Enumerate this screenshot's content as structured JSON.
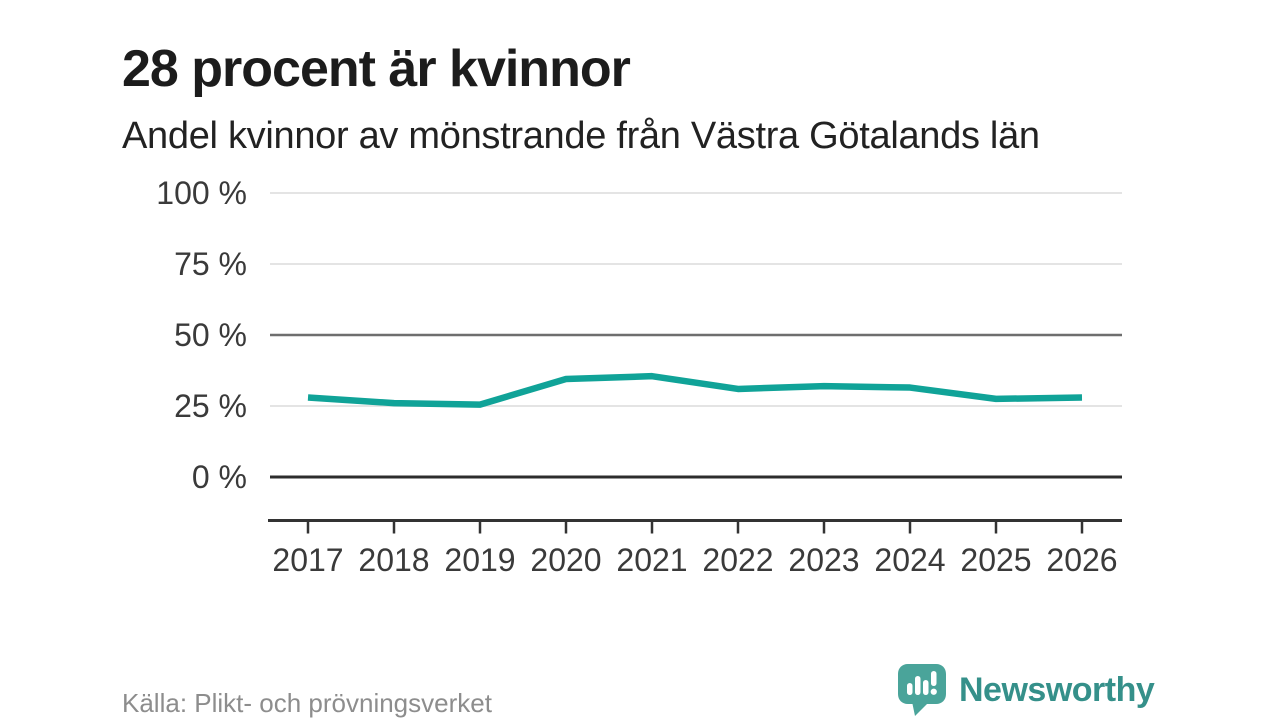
{
  "header": {
    "title": "28 procent är kvinnor",
    "subtitle": "Andel kvinnor av mönstrande från Västra Götalands län"
  },
  "chart_data": {
    "type": "line",
    "title": "28 procent är kvinnor",
    "subtitle": "Andel kvinnor av mönstrande från Västra Götalands län",
    "categories": [
      "2017",
      "2018",
      "2019",
      "2020",
      "2021",
      "2022",
      "2023",
      "2024",
      "2025",
      "2026"
    ],
    "series": [
      {
        "name": "Andel kvinnor av mönstrande",
        "values": [
          28,
          26,
          25.5,
          34.5,
          35.5,
          31,
          32,
          31.5,
          27.5,
          28
        ]
      }
    ],
    "unit": "%",
    "ylim": [
      0,
      100
    ],
    "yticks": [
      0,
      25,
      50,
      75,
      100
    ],
    "ytick_labels": [
      "0 %",
      "25 %",
      "50 %",
      "75 %",
      "100 %"
    ],
    "grid": "horizontal",
    "legend": "none",
    "line_color": "#10a398"
  },
  "footer": {
    "source": "Källa: Plikt- och prövningsverket",
    "brand": "Newsworthy"
  },
  "colors": {
    "line": "#10a398",
    "grid_light": "#e4e4e4",
    "grid_mid": "#6e6e6e",
    "grid_zero": "#2d2d2d",
    "axis": "#333333",
    "tick_label": "#3a3a3a",
    "title_text": "#1c1c1c",
    "source_text": "#8d8d8d",
    "brand_icon": "#4aa49a",
    "brand_text": "#35908a",
    "background": "#ffffff"
  }
}
